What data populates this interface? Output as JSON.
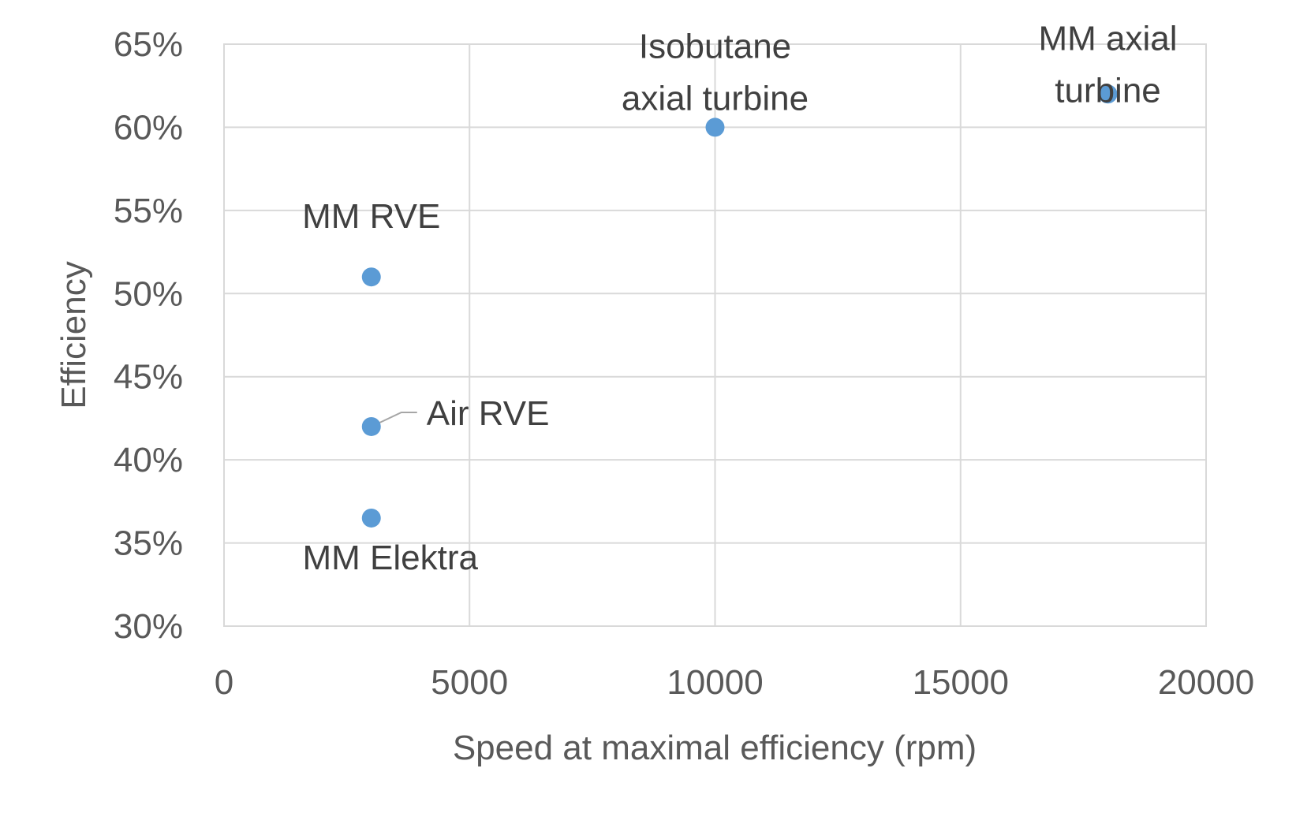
{
  "chart_data": {
    "type": "scatter",
    "xlabel": "Speed at maximal efficiency (rpm)",
    "ylabel": "Efficiency",
    "xlim": [
      0,
      20000
    ],
    "ylim": [
      0.3,
      0.65
    ],
    "x_ticks": [
      0,
      5000,
      10000,
      15000,
      20000
    ],
    "x_tick_labels": [
      "0",
      "5000",
      "10000",
      "15000",
      "20000"
    ],
    "y_ticks": [
      0.3,
      0.35,
      0.4,
      0.45,
      0.5,
      0.55,
      0.6,
      0.65
    ],
    "y_tick_labels": [
      "30%",
      "35%",
      "40%",
      "45%",
      "50%",
      "55%",
      "60%",
      "65%"
    ],
    "grid": true,
    "marker_color": "#5b9bd5",
    "points": [
      {
        "label": "MM RVE",
        "x": 3000,
        "y": 0.51
      },
      {
        "label": "Air RVE",
        "x": 3000,
        "y": 0.42
      },
      {
        "label": "MM Elektra",
        "x": 3000,
        "y": 0.365
      },
      {
        "label": "Isobutane axial turbine",
        "x": 10000,
        "y": 0.6
      },
      {
        "label": "MM axial turbine",
        "x": 18000,
        "y": 0.62
      }
    ]
  }
}
